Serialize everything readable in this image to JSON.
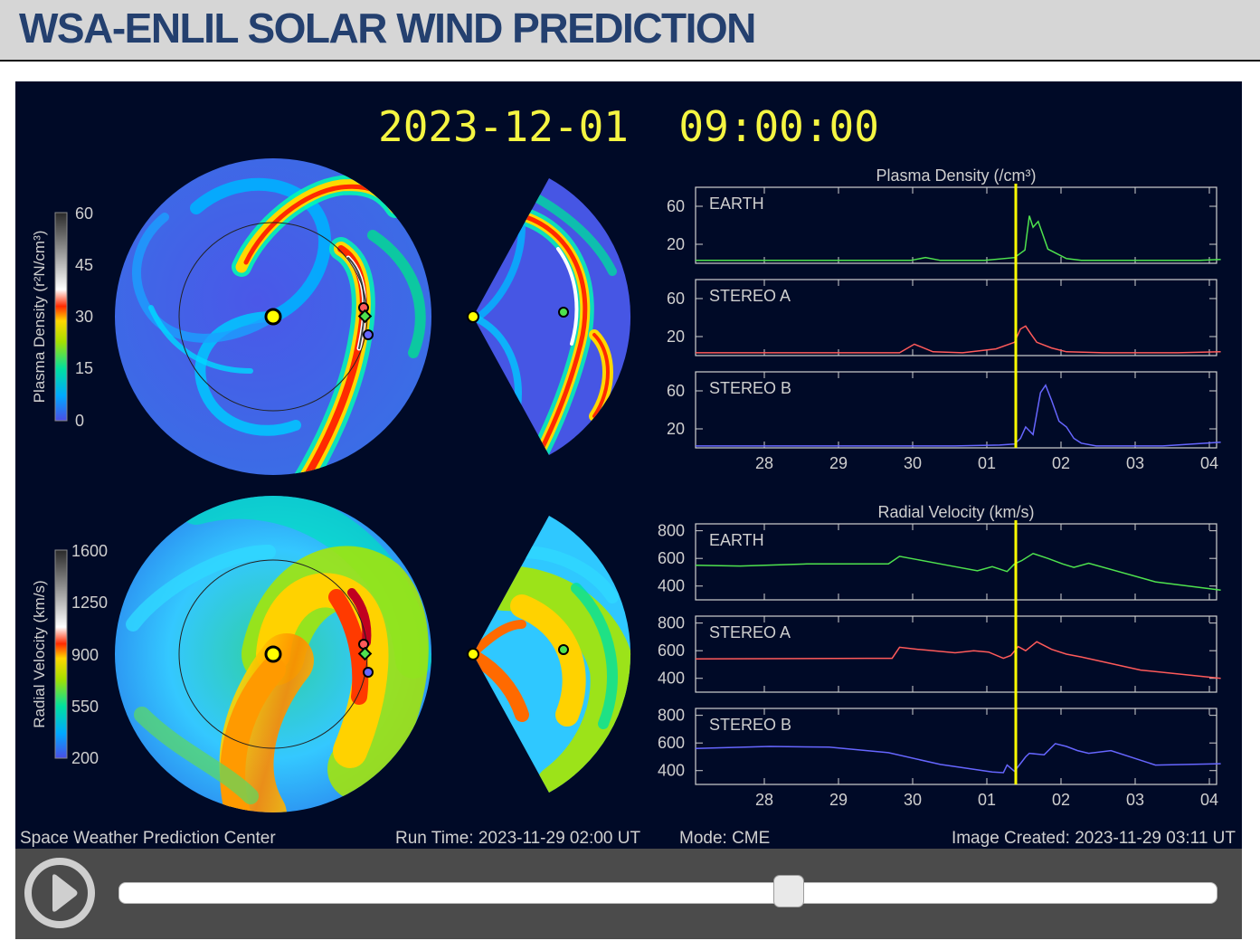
{
  "page": {
    "title": "WSA-ENLIL SOLAR WIND PREDICTION"
  },
  "viewer": {
    "timestamp": "2023-12-01  09:00:00",
    "footer_left": "Space Weather Prediction Center",
    "footer_run_time": "Run Time: 2023-11-29 02:00 UT",
    "footer_mode": "Mode: CME",
    "footer_created": "Image Created: 2023-11-29 03:11 UT",
    "density_colorbar": {
      "label": "Plasma Density (r²N/cm³)",
      "ticks": [
        "60",
        "45",
        "30",
        "15",
        "0"
      ]
    },
    "velocity_colorbar": {
      "label": "Radial Velocity (km/s)",
      "ticks": [
        "1600",
        "1250",
        "900",
        "550",
        "200"
      ]
    },
    "colors": {
      "title": "#f5f542",
      "text": "#cfcfcf",
      "marker_line": "#ffff00",
      "earth": "#4ee24e",
      "stereo_a": "#ff5a5a",
      "stereo_b": "#6666ff",
      "field_low": "#4054e0",
      "field_high": "#ff2a00"
    }
  },
  "chart_data": [
    {
      "type": "line",
      "title": "Plasma Density (/cm³)",
      "categories": [
        "28",
        "29",
        "30",
        "01",
        "02",
        "03",
        "04"
      ],
      "current_time": "2023-12-01 09:00",
      "panels": [
        {
          "name": "EARTH",
          "color": "#4ee24e",
          "yticks": [
            "60",
            "20"
          ],
          "ylim": [
            0,
            80
          ],
          "x": [
            0,
            1.8,
            2.9,
            3.1,
            3.3,
            3.9,
            4.3,
            4.44,
            4.5,
            4.55,
            4.62,
            4.75,
            5.0,
            5.2,
            6.0,
            6.8,
            7.08
          ],
          "y": [
            3,
            3,
            3,
            6,
            3,
            3,
            6,
            14,
            50,
            38,
            44,
            15,
            5,
            3,
            3,
            3,
            4
          ]
        },
        {
          "name": "STEREO A",
          "color": "#ff5a5a",
          "yticks": [
            "60",
            "20"
          ],
          "ylim": [
            0,
            80
          ],
          "x": [
            0,
            1.8,
            2.75,
            2.95,
            3.2,
            3.6,
            4.05,
            4.3,
            4.38,
            4.45,
            4.52,
            4.6,
            4.8,
            5.0,
            5.5,
            6.5,
            7.08
          ],
          "y": [
            3,
            3,
            3,
            12,
            4,
            3,
            7,
            14,
            28,
            31,
            23,
            14,
            8,
            4,
            3,
            3,
            4
          ]
        },
        {
          "name": "STEREO B",
          "color": "#6666ff",
          "yticks": [
            "60",
            "20"
          ],
          "ylim": [
            0,
            80
          ],
          "x": [
            0,
            2.5,
            3.5,
            4.1,
            4.3,
            4.38,
            4.45,
            4.55,
            4.65,
            4.72,
            4.8,
            4.9,
            5.0,
            5.1,
            5.2,
            5.4,
            6.3,
            7.08
          ],
          "y": [
            2,
            2,
            2,
            3,
            4,
            10,
            22,
            14,
            58,
            66,
            50,
            28,
            22,
            10,
            5,
            2,
            2,
            6
          ]
        }
      ]
    },
    {
      "type": "line",
      "title": "Radial Velocity (km/s)",
      "categories": [
        "28",
        "29",
        "30",
        "01",
        "02",
        "03",
        "04"
      ],
      "current_time": "2023-12-01 09:00",
      "panels": [
        {
          "name": "EARTH",
          "color": "#4ee24e",
          "yticks": [
            "800",
            "600",
            "400"
          ],
          "ylim": [
            300,
            850
          ],
          "x": [
            0,
            0.6,
            1.5,
            2.6,
            2.75,
            3.0,
            3.4,
            3.8,
            4.0,
            4.2,
            4.3,
            4.4,
            4.55,
            4.75,
            4.95,
            5.1,
            5.3,
            6.2,
            7.08
          ],
          "y": [
            550,
            545,
            560,
            560,
            615,
            590,
            550,
            510,
            540,
            505,
            560,
            585,
            635,
            600,
            560,
            535,
            565,
            430,
            370
          ]
        },
        {
          "name": "STEREO A",
          "color": "#ff5a5a",
          "yticks": [
            "800",
            "600",
            "400"
          ],
          "ylim": [
            300,
            850
          ],
          "x": [
            0,
            2.3,
            2.65,
            2.75,
            3.0,
            3.5,
            3.75,
            3.95,
            4.15,
            4.25,
            4.35,
            4.45,
            4.6,
            4.8,
            5.0,
            5.2,
            6.0,
            7.08
          ],
          "y": [
            540,
            545,
            545,
            625,
            610,
            585,
            600,
            590,
            545,
            565,
            630,
            600,
            665,
            610,
            575,
            555,
            460,
            400
          ]
        },
        {
          "name": "STEREO B",
          "color": "#6666ff",
          "yticks": [
            "800",
            "600",
            "400"
          ],
          "ylim": [
            300,
            850
          ],
          "x": [
            0,
            1.0,
            1.8,
            2.6,
            3.3,
            4.0,
            4.15,
            4.2,
            4.3,
            4.45,
            4.5,
            4.7,
            4.85,
            5.0,
            5.15,
            5.3,
            5.6,
            6.2,
            7.08
          ],
          "y": [
            560,
            575,
            570,
            530,
            445,
            390,
            385,
            440,
            395,
            500,
            525,
            515,
            595,
            575,
            545,
            525,
            545,
            440,
            450
          ]
        }
      ]
    }
  ],
  "controls": {
    "slider_fraction": 0.61
  }
}
